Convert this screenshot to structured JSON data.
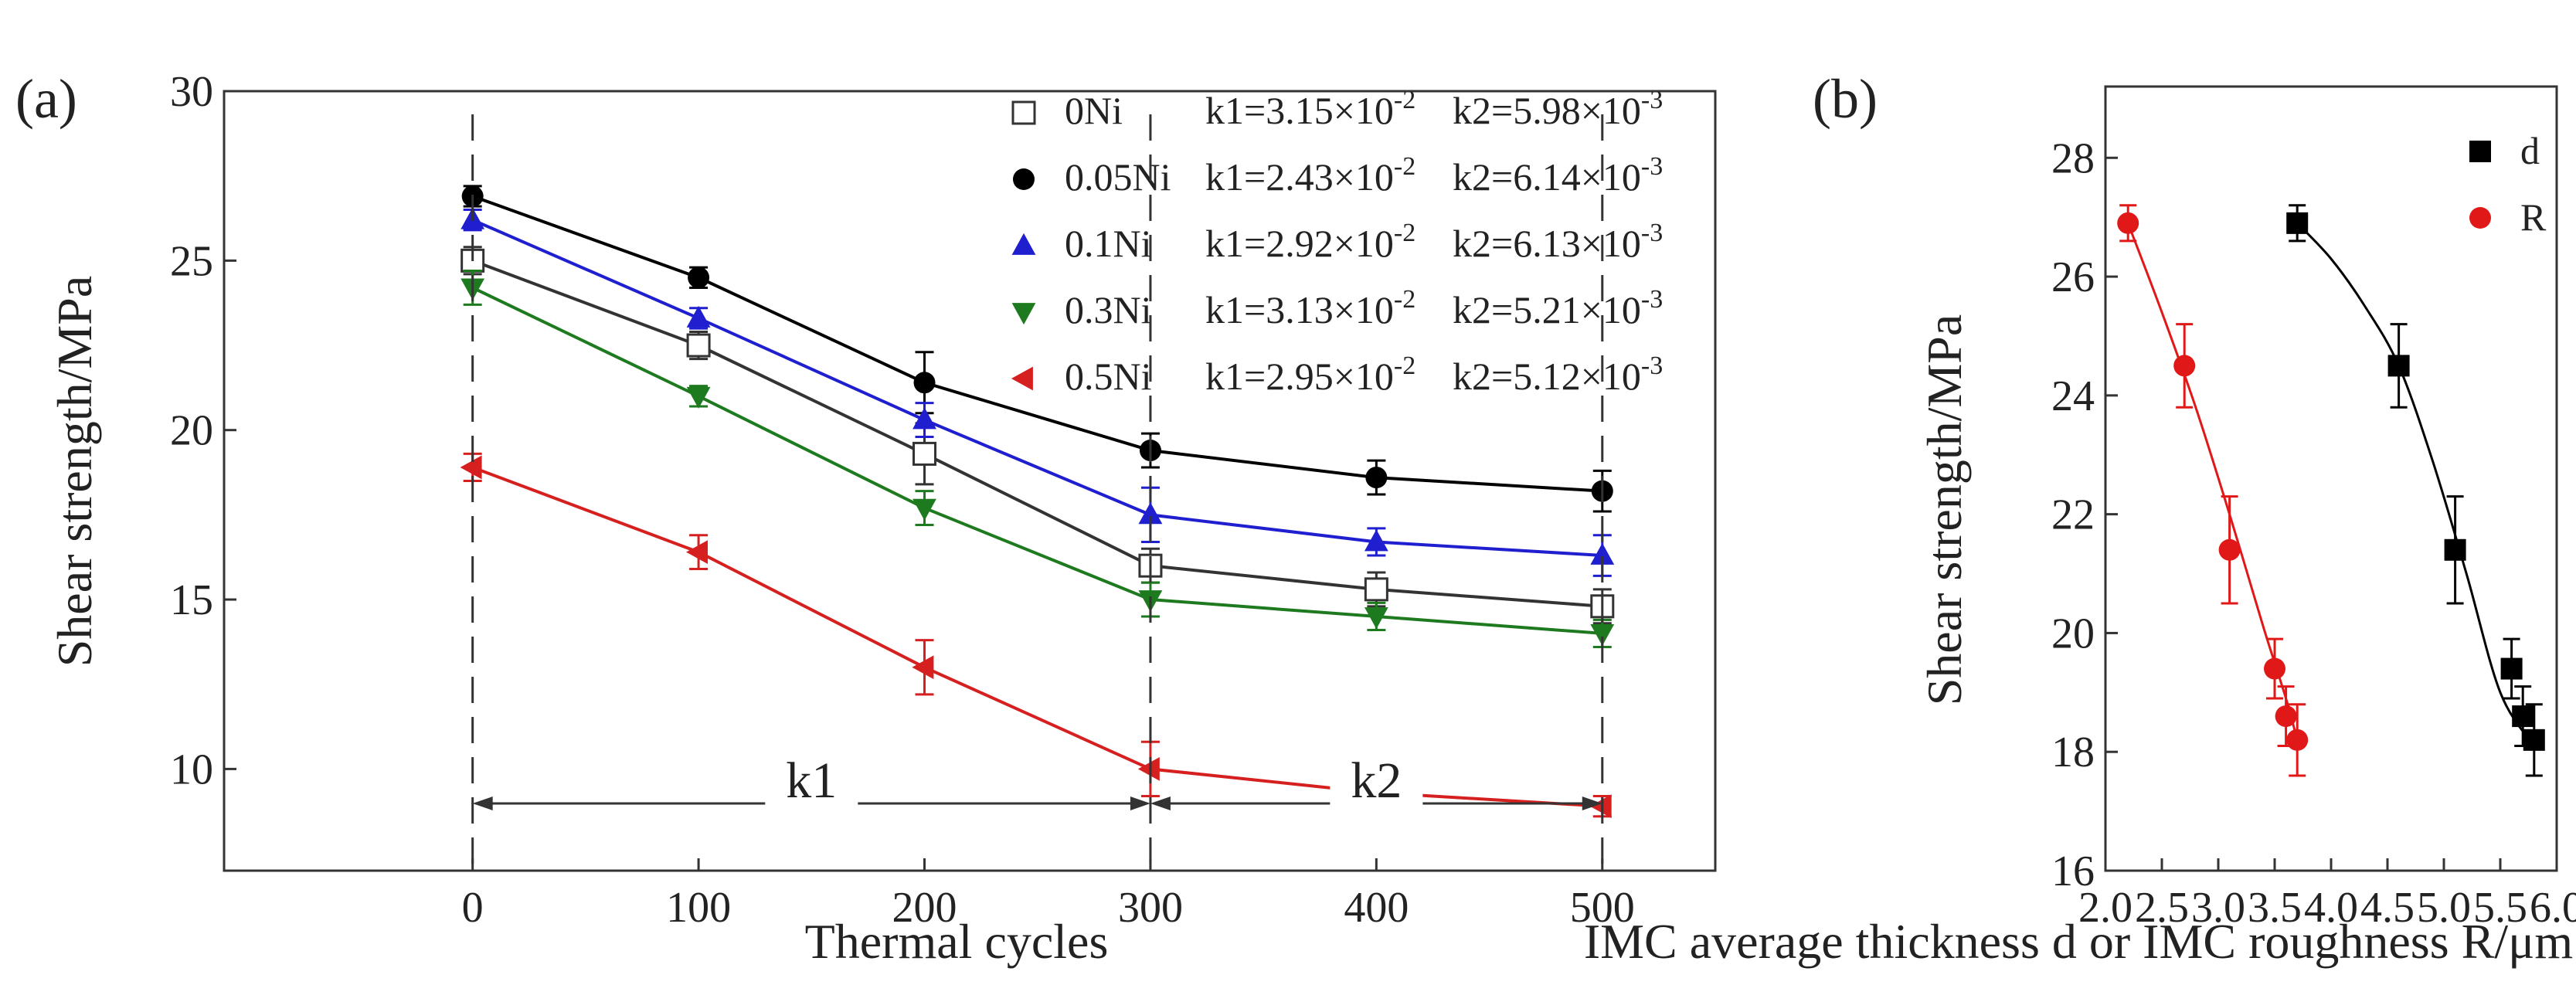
{
  "chart_data": [
    {
      "type": "line",
      "panel_label": "(a)",
      "xlabel": "Thermal cycles",
      "ylabel": "Shear strength/MPa",
      "xlim": [
        -110,
        550
      ],
      "ylim": [
        7,
        30
      ],
      "xticks": [
        0,
        100,
        200,
        300,
        400,
        500
      ],
      "yticks": [
        10,
        15,
        20,
        25,
        30
      ],
      "x": [
        0,
        100,
        200,
        300,
        400,
        500
      ],
      "series": [
        {
          "name": "0Ni",
          "k1": "k1=3.15×10",
          "k1_exp": "-2",
          "k2": "k2=5.98×10",
          "k2_exp": "-3",
          "values": [
            25.0,
            22.5,
            19.3,
            16.0,
            15.3,
            14.8
          ],
          "errors": [
            0.4,
            0.4,
            0.9,
            0.5,
            0.5,
            0.5
          ],
          "color": "#333333",
          "marker": "square-open"
        },
        {
          "name": "0.05Ni",
          "k1": "k1=2.43×10",
          "k1_exp": "-2",
          "k2": "k2=6.14×10",
          "k2_exp": "-3",
          "values": [
            26.9,
            24.5,
            21.4,
            19.4,
            18.6,
            18.2
          ],
          "errors": [
            0.3,
            0.3,
            0.9,
            0.5,
            0.5,
            0.6
          ],
          "color": "#000000",
          "marker": "circle"
        },
        {
          "name": "0.1Ni",
          "k1": "k1=2.92×10",
          "k1_exp": "-2",
          "k2": "k2=6.13×10",
          "k2_exp": "-3",
          "values": [
            26.2,
            23.3,
            20.3,
            17.5,
            16.7,
            16.3
          ],
          "errors": [
            0.3,
            0.3,
            0.5,
            0.8,
            0.4,
            0.6
          ],
          "color": "#1f1fcf",
          "marker": "triangle-up"
        },
        {
          "name": "0.3Ni",
          "k1": "k1=3.13×10",
          "k1_exp": "-2",
          "k2": "k2=5.21×10",
          "k2_exp": "-3",
          "values": [
            24.2,
            21.0,
            17.7,
            15.0,
            14.5,
            14.0
          ],
          "errors": [
            0.5,
            0.3,
            0.5,
            0.5,
            0.4,
            0.4
          ],
          "color": "#1e7a1e",
          "marker": "triangle-down"
        },
        {
          "name": "0.5Ni",
          "k1": "k1=2.95×10",
          "k1_exp": "-2",
          "k2": "k2=5.12×10",
          "k2_exp": "-3",
          "values": [
            18.9,
            16.4,
            13.0,
            10.0,
            9.3,
            8.9
          ],
          "errors": [
            0.4,
            0.5,
            0.8,
            0.8,
            0.5,
            0.3
          ],
          "color": "#d62020",
          "marker": "triangle-left"
        }
      ],
      "region_labels": [
        "k1",
        "k2"
      ],
      "dividers_x": [
        0,
        300,
        500
      ]
    },
    {
      "type": "scatter",
      "panel_label": "(b)",
      "xlabel": "IMC average thickness d or IMC roughness R/μm",
      "ylabel": "Shear strength/MPa",
      "xlim": [
        2.0,
        6.0
      ],
      "ylim": [
        16,
        29.2
      ],
      "xticks": [
        "2.0",
        "2.5",
        "3.0",
        "3.5",
        "4.0",
        "4.5",
        "5.0",
        "5.5",
        "6.0"
      ],
      "yticks": [
        "16",
        "18",
        "20",
        "22",
        "24",
        "26",
        "28"
      ],
      "series": [
        {
          "name": "d",
          "color": "#000000",
          "marker": "square",
          "x": [
            3.7,
            4.6,
            5.1,
            5.6,
            5.7,
            5.8
          ],
          "y": [
            26.9,
            24.5,
            21.4,
            19.4,
            18.6,
            18.2
          ],
          "errors": [
            0.3,
            0.7,
            0.9,
            0.5,
            0.5,
            0.6
          ],
          "fit": [
            [
              3.7,
              26.9
            ],
            [
              4.0,
              26.3
            ],
            [
              4.3,
              25.5
            ],
            [
              4.6,
              24.5
            ],
            [
              4.9,
              22.9
            ],
            [
              5.2,
              21.0
            ],
            [
              5.5,
              19.0
            ],
            [
              5.8,
              18.1
            ]
          ]
        },
        {
          "name": "R",
          "color": "#e01818",
          "marker": "circle",
          "x": [
            2.2,
            2.7,
            3.1,
            3.5,
            3.6,
            3.7
          ],
          "y": [
            26.9,
            24.5,
            21.4,
            19.4,
            18.6,
            18.2
          ],
          "errors": [
            0.3,
            0.7,
            0.9,
            0.5,
            0.5,
            0.6
          ],
          "fit": [
            [
              2.2,
              26.9
            ],
            [
              2.5,
              25.4
            ],
            [
              2.8,
              23.8
            ],
            [
              3.1,
              22.0
            ],
            [
              3.4,
              20.1
            ],
            [
              3.6,
              18.9
            ],
            [
              3.7,
              18.2
            ]
          ]
        }
      ]
    }
  ]
}
